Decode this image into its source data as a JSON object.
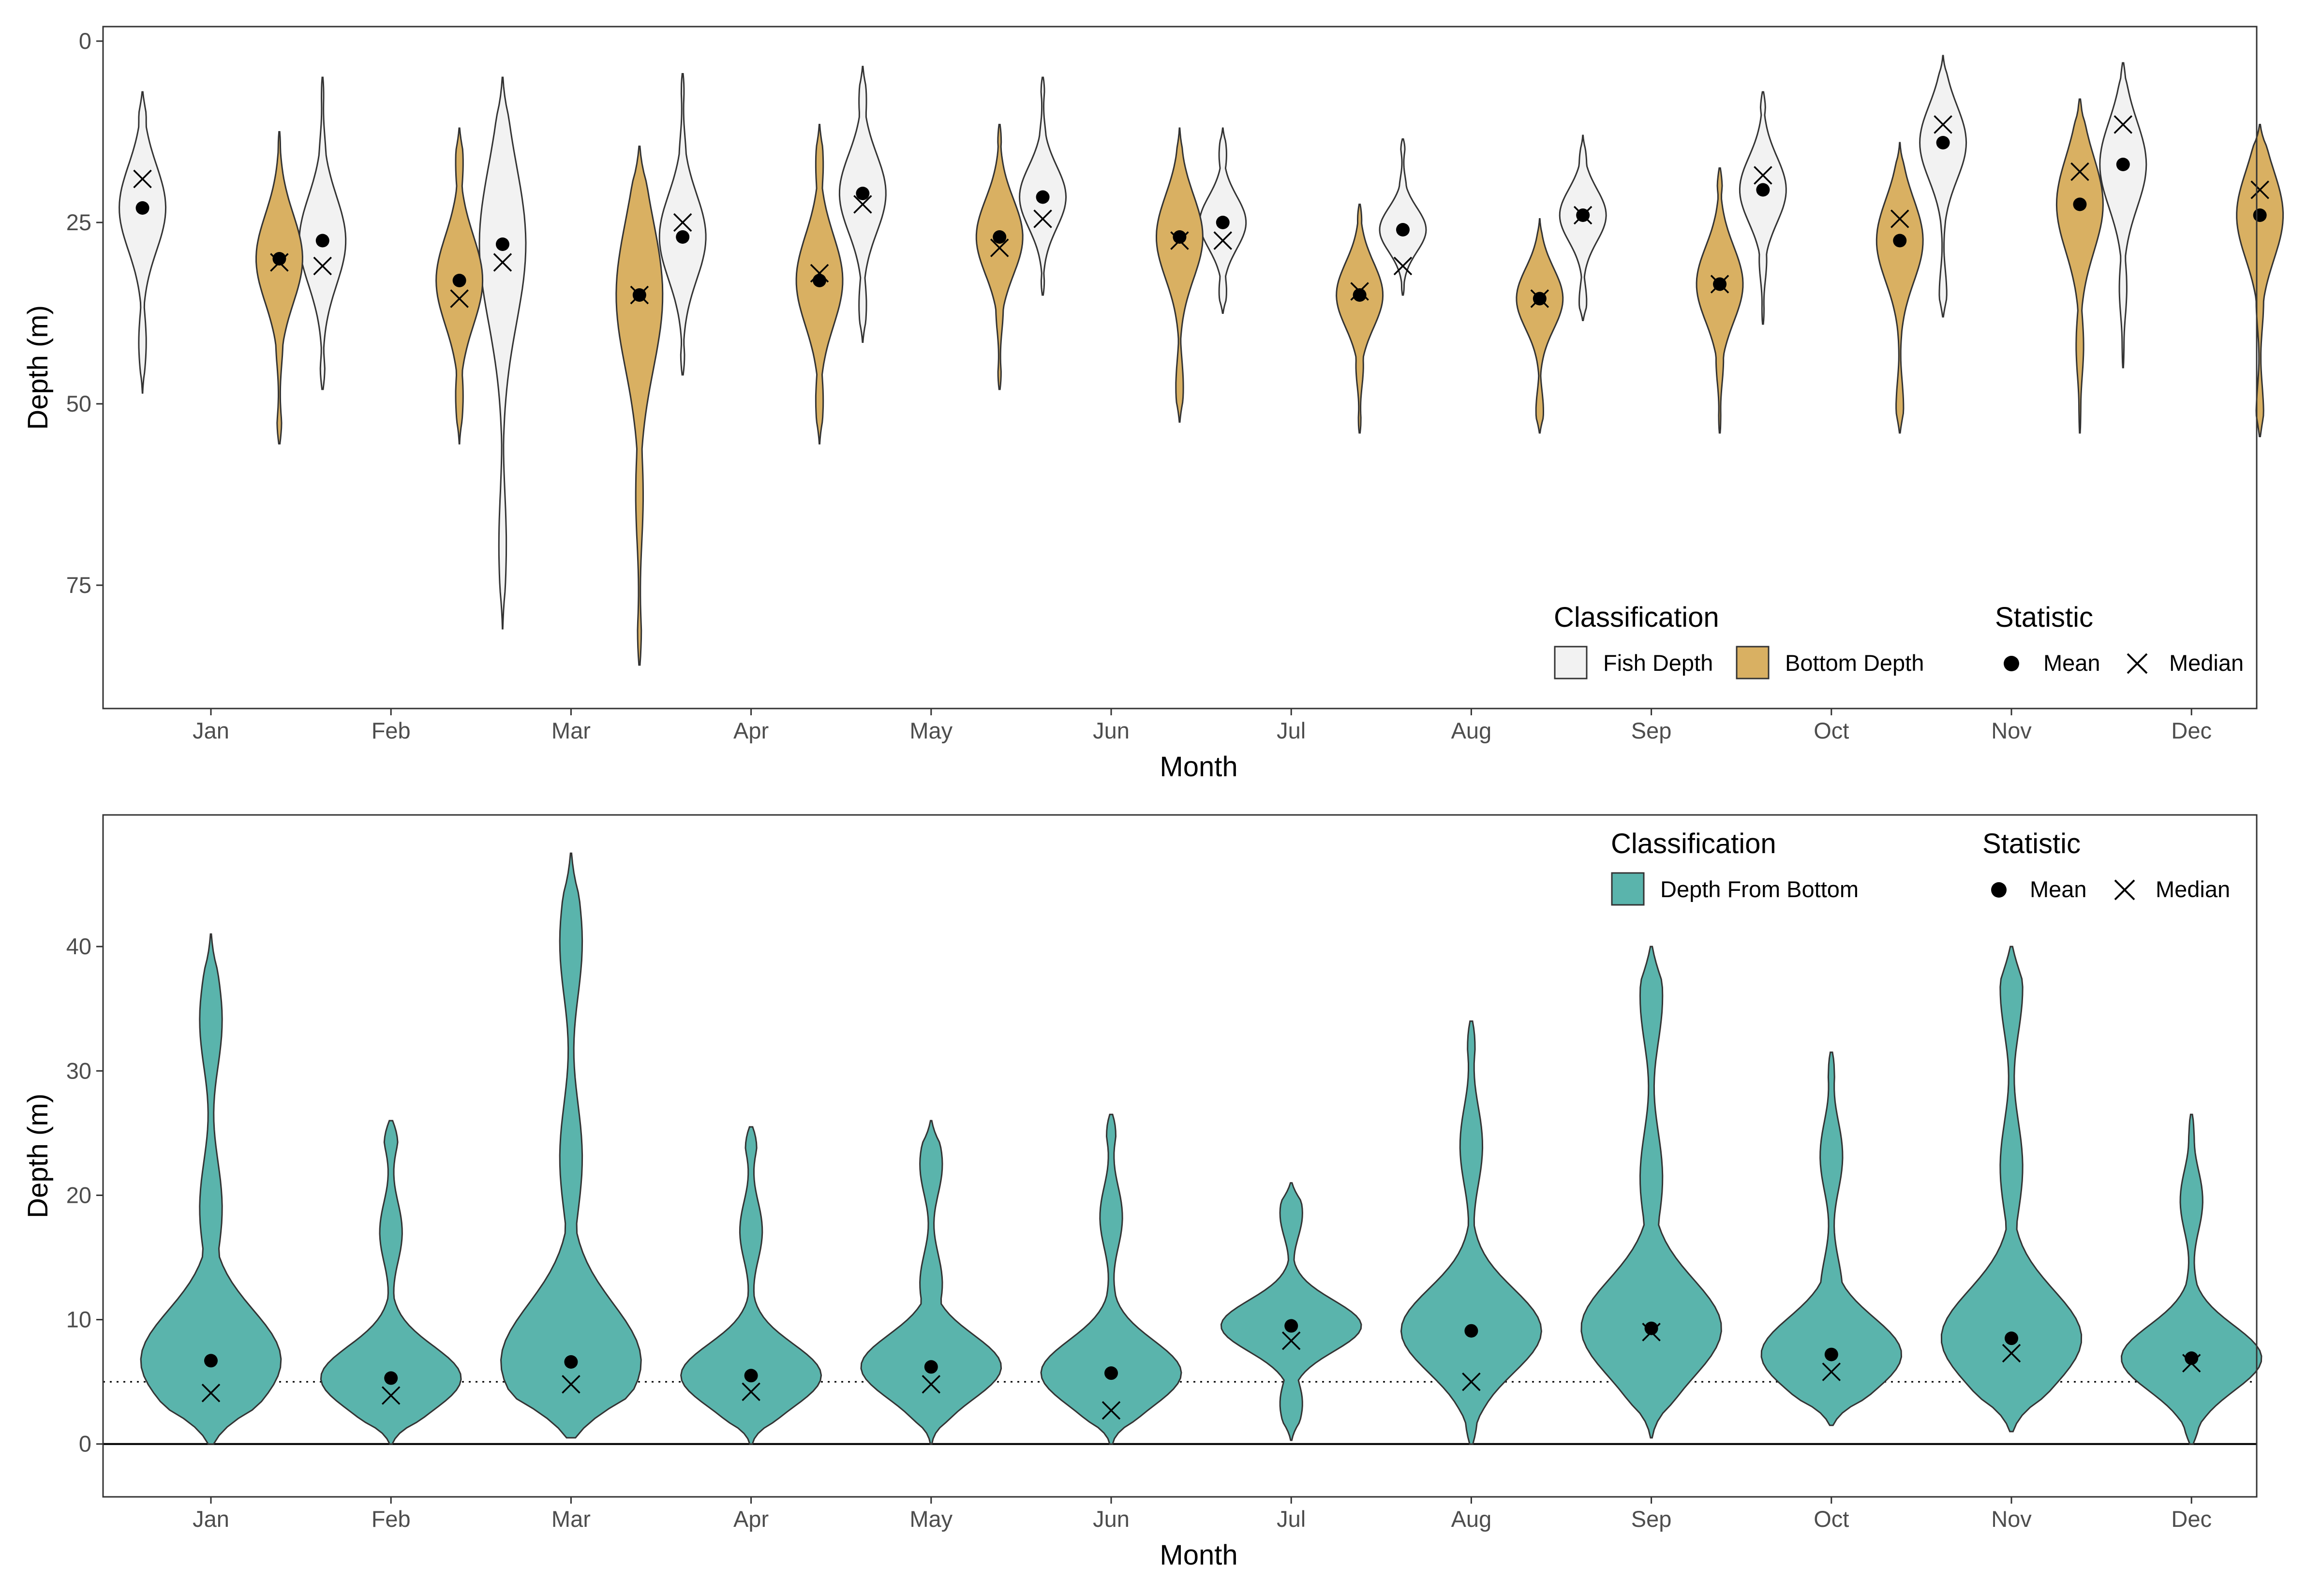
{
  "chart_data": [
    {
      "type": "violin",
      "xlabel": "Month",
      "ylabel": "Depth (m)",
      "y_reversed": true,
      "ylim": [
        0,
        88
      ],
      "yticks": [
        0,
        25,
        50,
        75
      ],
      "grid": false,
      "categories": [
        "Jan",
        "Feb",
        "Mar",
        "Apr",
        "May",
        "Jun",
        "Jul",
        "Aug",
        "Sep",
        "Oct",
        "Nov",
        "Dec"
      ],
      "legend": {
        "placement": "bottom-right",
        "classification_title": "Classification",
        "classification_items": [
          {
            "label": "Fish Depth",
            "color": "#f2f2f2"
          },
          {
            "label": "Bottom Depth",
            "color": "#d9b062"
          }
        ],
        "statistic_title": "Statistic",
        "statistic_items": [
          {
            "label": "Mean",
            "symbol": "dot"
          },
          {
            "label": "Median",
            "symbol": "cross"
          }
        ]
      },
      "series": [
        {
          "name": "Fish Depth",
          "color": "#f2f2f2",
          "min": [
            7,
            5,
            5,
            4.5,
            3.5,
            5,
            12,
            13.5,
            13,
            7,
            2,
            3
          ],
          "max": [
            48.5,
            48,
            81,
            46,
            41.5,
            35,
            37.5,
            35,
            38.5,
            39,
            38,
            45
          ],
          "mean": [
            23,
            27.5,
            28,
            27,
            21,
            21.5,
            25,
            26,
            24,
            20.5,
            14,
            17
          ],
          "median": [
            19,
            31,
            30.5,
            25,
            22.5,
            24.5,
            27.5,
            31,
            24,
            18.5,
            11.5,
            11.5
          ]
        },
        {
          "name": "Bottom Depth",
          "color": "#d9b062",
          "min": [
            12.5,
            12,
            14.5,
            11.5,
            11.5,
            12,
            22.5,
            24.5,
            17.5,
            14,
            8,
            11.5
          ],
          "max": [
            55.5,
            55.5,
            86,
            55.5,
            48,
            52.5,
            54,
            54,
            54,
            54,
            54,
            54.5
          ],
          "mean": [
            30,
            33,
            35,
            33,
            27,
            27,
            35,
            35.5,
            33.5,
            27.5,
            22.5,
            24
          ],
          "median": [
            30.5,
            35.5,
            35,
            32,
            28.5,
            27.5,
            34.5,
            35.5,
            33.5,
            24.5,
            18,
            20.5
          ]
        }
      ]
    },
    {
      "type": "violin",
      "xlabel": "Month",
      "ylabel": "Depth (m)",
      "y_reversed": false,
      "ylim": [
        -2.5,
        50
      ],
      "yticks": [
        0,
        10,
        20,
        30,
        40
      ],
      "grid": false,
      "reference_lines": [
        {
          "y": 0,
          "style": "solid"
        },
        {
          "y": 5,
          "style": "dotted"
        }
      ],
      "categories": [
        "Jan",
        "Feb",
        "Mar",
        "Apr",
        "May",
        "Jun",
        "Jul",
        "Aug",
        "Sep",
        "Oct",
        "Nov",
        "Dec"
      ],
      "legend": {
        "placement": "top-right",
        "classification_title": "Classification",
        "classification_items": [
          {
            "label": "Depth From Bottom",
            "color": "#5ab4ac"
          }
        ],
        "statistic_title": "Statistic",
        "statistic_items": [
          {
            "label": "Mean",
            "symbol": "dot"
          },
          {
            "label": "Median",
            "symbol": "cross"
          }
        ]
      },
      "series": [
        {
          "name": "Depth From Bottom",
          "color": "#5ab4ac",
          "min": [
            0,
            0,
            0.5,
            0,
            0,
            0,
            0.3,
            0,
            0.5,
            1.5,
            1,
            0
          ],
          "max": [
            41,
            26,
            47.5,
            25.5,
            26,
            26.5,
            21,
            34,
            40,
            31.5,
            40,
            26.5
          ],
          "mean": [
            6.7,
            5.3,
            6.6,
            5.5,
            6.2,
            5.7,
            9.5,
            9.1,
            9.3,
            7.2,
            8.5,
            6.9
          ],
          "median": [
            4.1,
            3.9,
            4.8,
            4.2,
            4.8,
            2.7,
            8.3,
            5.0,
            9.0,
            5.8,
            7.3,
            6.5
          ]
        }
      ]
    }
  ]
}
